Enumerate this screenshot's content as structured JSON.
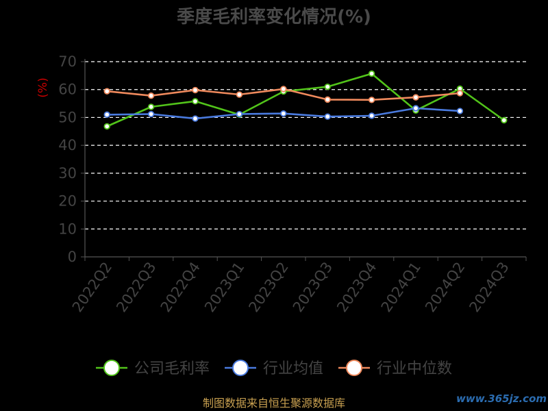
{
  "chart_data": {
    "type": "line",
    "title": "季度毛利率变化情况(%)",
    "ylabel": "(%)",
    "categories": [
      "2022Q2",
      "2022Q3",
      "2022Q4",
      "2023Q1",
      "2023Q2",
      "2023Q3",
      "2023Q4",
      "2024Q1",
      "2024Q2",
      "2024Q3"
    ],
    "ylim": [
      0,
      70
    ],
    "yticks": [
      0,
      10,
      20,
      30,
      40,
      50,
      60,
      70
    ],
    "grid": true,
    "legend_position": "bottom",
    "series": [
      {
        "name": "公司毛利率",
        "color": "#52c41a",
        "values": [
          46.8,
          53.8,
          55.8,
          51.0,
          59.3,
          61.0,
          65.7,
          52.5,
          60.3,
          49.0
        ]
      },
      {
        "name": "行业均值",
        "color": "#4a7be0",
        "values": [
          51.0,
          51.2,
          49.6,
          51.2,
          51.4,
          50.3,
          50.6,
          53.3,
          52.3,
          null
        ]
      },
      {
        "name": "行业中位数",
        "color": "#f08a5d",
        "values": [
          59.4,
          57.8,
          59.8,
          58.2,
          60.2,
          56.4,
          56.3,
          57.2,
          58.7,
          null
        ]
      }
    ]
  },
  "source": "制图数据来自恒生聚源数据库",
  "watermark": "www.365jz.com"
}
